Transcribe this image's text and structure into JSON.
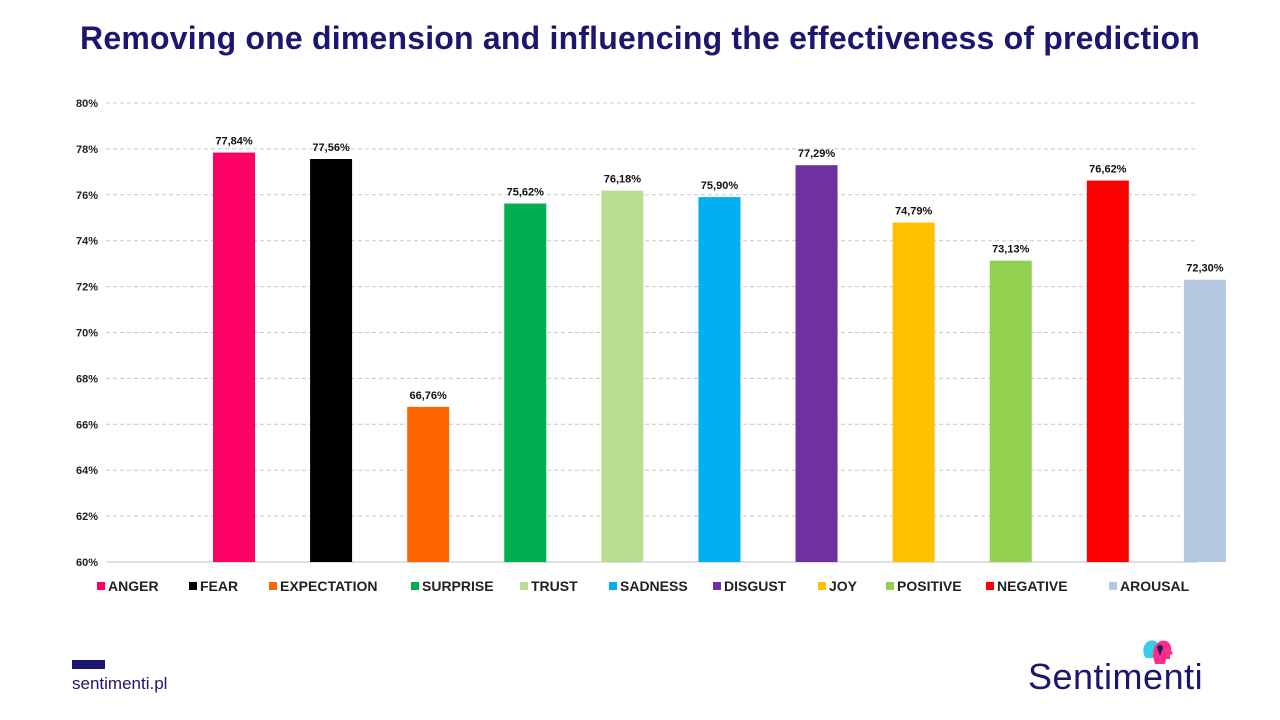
{
  "header": {
    "title": "Removing one dimension and influencing the effectiveness of prediction"
  },
  "footer": {
    "url": "sentimenti.pl",
    "brand": "Sentimenti",
    "brand_color": "#1b1670"
  },
  "chart_data": {
    "type": "bar",
    "title": "Removing one dimension and influencing the effectiveness of prediction",
    "categories": [
      "ANGER",
      "FEAR",
      "EXPECTATION",
      "SURPRISE",
      "TRUST",
      "SADNESS",
      "DISGUST",
      "JOY",
      "POSITIVE",
      "NEGATIVE",
      "AROUSAL"
    ],
    "values": [
      77.84,
      77.56,
      66.76,
      75.62,
      76.18,
      75.9,
      77.29,
      74.79,
      73.13,
      76.62,
      72.3
    ],
    "value_labels": [
      "77,84%",
      "77,56%",
      "66,76%",
      "75,62%",
      "76,18%",
      "75,90%",
      "77,29%",
      "74,79%",
      "73,13%",
      "76,62%",
      "72,30%"
    ],
    "colors": [
      "#ff0066",
      "#000000",
      "#ff6600",
      "#00b050",
      "#b7df8f",
      "#00b0f0",
      "#7030a0",
      "#ffc000",
      "#92d050",
      "#ff0000",
      "#b4c7e0"
    ],
    "ylim": [
      60,
      80
    ],
    "yticks": [
      "60%",
      "62%",
      "64%",
      "66%",
      "68%",
      "70%",
      "72%",
      "74%",
      "76%",
      "78%",
      "80%"
    ],
    "xlabel": "",
    "ylabel": "",
    "grid": true,
    "legend": "bottom"
  }
}
